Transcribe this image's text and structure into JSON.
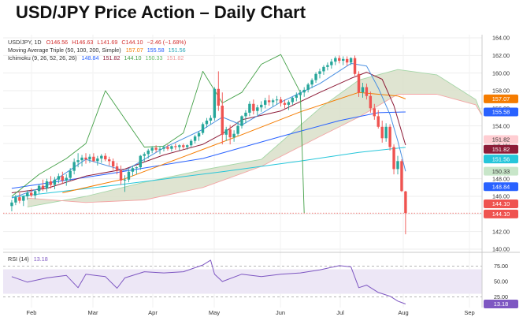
{
  "title": "USD/JPY Price Action – Daily Chart",
  "legend": {
    "line1_label": "USD/JPY, 1D",
    "line1_o": "O146.56",
    "line1_h": "H146.63",
    "line1_l": "L141.69",
    "line1_c": "C144.10",
    "line1_chg": "−2.46 (−1.68%)",
    "line2_label": "Moving Average Triple (50, 100, 200, Simple)",
    "line2_v1": "157.07",
    "line2_v2": "155.58",
    "line2_v3": "151.56",
    "line3_label": "Ichimoku (9, 26, 52, 26, 26)",
    "line3_v1": "148.84",
    "line3_v2": "151.82",
    "line3_v3": "144.10",
    "line3_v4": "150.33",
    "line3_v5": "151.82"
  },
  "colors": {
    "up": "#26a69a",
    "down": "#ef5350",
    "ma50": "#f57c00",
    "ma100": "#2962ff",
    "ma200": "#26c6da",
    "tenkan": "#4a90e2",
    "kijun": "#8e1c38",
    "chikou": "#43a047",
    "cloud": "#d9dfc9",
    "rsi": "#7e57c2",
    "rsi_band": "#ede7f6"
  },
  "chart_data": [
    {
      "type": "candlestick",
      "name": "USD/JPY, 1D",
      "ylim": [
        140,
        164
      ],
      "y_ticks": [
        140,
        142,
        144,
        146,
        148,
        150,
        152,
        154,
        156,
        158,
        160,
        162,
        164
      ],
      "y_tick_labels": [
        "140.00",
        "142.00",
        "144.00",
        "146.00",
        "148.00",
        "150.00",
        "152.00",
        "154.00",
        "156.00",
        "158.00",
        "160.00",
        "162.00",
        "164.00"
      ],
      "x_months": [
        "Feb",
        "Mar",
        "Apr",
        "May",
        "Jun",
        "Jul",
        "Aug",
        "Sep"
      ],
      "ohlc": [
        [
          144.9,
          145.6,
          144.3,
          145.3
        ],
        [
          145.3,
          146.2,
          145.0,
          145.9
        ],
        [
          145.9,
          146.4,
          145.2,
          145.5
        ],
        [
          145.5,
          146.1,
          144.9,
          146.0
        ],
        [
          146.0,
          146.7,
          145.6,
          146.4
        ],
        [
          146.4,
          146.9,
          145.9,
          146.1
        ],
        [
          146.1,
          146.8,
          145.7,
          146.6
        ],
        [
          146.6,
          147.4,
          146.3,
          147.2
        ],
        [
          147.2,
          147.9,
          146.6,
          146.9
        ],
        [
          146.9,
          148.0,
          146.5,
          147.7
        ],
        [
          147.7,
          148.3,
          146.9,
          147.3
        ],
        [
          147.3,
          148.2,
          146.8,
          147.9
        ],
        [
          147.9,
          148.6,
          147.5,
          148.3
        ],
        [
          148.3,
          148.8,
          147.4,
          147.8
        ],
        [
          147.8,
          148.5,
          147.2,
          148.1
        ],
        [
          148.1,
          149.2,
          147.8,
          148.9
        ],
        [
          148.9,
          150.3,
          148.5,
          149.9
        ],
        [
          149.9,
          150.9,
          149.3,
          150.1
        ],
        [
          150.1,
          150.7,
          149.4,
          150.4
        ],
        [
          150.4,
          150.9,
          149.7,
          150.2
        ],
        [
          150.2,
          150.8,
          149.8,
          150.5
        ],
        [
          150.5,
          150.9,
          149.9,
          150.0
        ],
        [
          150.0,
          150.6,
          149.5,
          150.3
        ],
        [
          150.3,
          150.8,
          149.8,
          150.6
        ],
        [
          150.6,
          150.9,
          150.0,
          150.2
        ],
        [
          150.2,
          150.5,
          149.5,
          150.0
        ],
        [
          150.0,
          150.3,
          149.0,
          149.4
        ],
        [
          149.4,
          149.8,
          148.5,
          149.0
        ],
        [
          149.0,
          149.5,
          147.3,
          147.8
        ],
        [
          147.8,
          148.4,
          146.5,
          147.9
        ],
        [
          147.9,
          149.1,
          147.6,
          148.8
        ],
        [
          148.8,
          149.5,
          148.3,
          149.2
        ],
        [
          149.2,
          149.4,
          148.5,
          149.3
        ],
        [
          149.3,
          150.7,
          149.0,
          150.6
        ],
        [
          150.6,
          151.0,
          149.9,
          150.8
        ],
        [
          150.8,
          151.4,
          150.3,
          151.2
        ],
        [
          151.2,
          151.7,
          150.9,
          151.5
        ],
        [
          151.5,
          151.8,
          151.0,
          151.3
        ],
        [
          151.3,
          151.7,
          150.8,
          151.4
        ],
        [
          151.4,
          151.8,
          151.1,
          151.6
        ],
        [
          151.6,
          151.9,
          151.2,
          151.4
        ],
        [
          151.4,
          151.8,
          151.1,
          151.7
        ],
        [
          151.7,
          152.0,
          151.3,
          151.6
        ],
        [
          151.6,
          151.9,
          151.2,
          151.8
        ],
        [
          151.8,
          152.0,
          151.4,
          151.6
        ],
        [
          151.6,
          151.9,
          151.3,
          151.8
        ],
        [
          151.8,
          152.5,
          151.6,
          152.3
        ],
        [
          152.3,
          153.0,
          152.0,
          152.8
        ],
        [
          152.8,
          153.4,
          152.3,
          153.2
        ],
        [
          153.2,
          154.4,
          153.0,
          154.2
        ],
        [
          154.2,
          154.9,
          153.8,
          154.6
        ],
        [
          154.6,
          155.2,
          154.2,
          154.9
        ],
        [
          154.9,
          158.4,
          154.6,
          158.2
        ],
        [
          158.2,
          160.2,
          155.7,
          156.3
        ],
        [
          156.3,
          157.8,
          151.9,
          153.0
        ],
        [
          153.0,
          153.9,
          152.3,
          153.6
        ],
        [
          153.6,
          154.1,
          151.9,
          152.7
        ],
        [
          152.7,
          153.5,
          152.2,
          153.1
        ],
        [
          153.1,
          154.5,
          152.9,
          154.0
        ],
        [
          154.0,
          155.2,
          153.7,
          155.1
        ],
        [
          155.1,
          155.8,
          154.3,
          155.5
        ],
        [
          155.5,
          156.8,
          155.1,
          156.5
        ],
        [
          156.5,
          157.0,
          155.3,
          155.7
        ],
        [
          155.7,
          156.4,
          155.2,
          156.1
        ],
        [
          156.1,
          156.8,
          155.6,
          156.4
        ],
        [
          156.4,
          157.2,
          156.0,
          156.9
        ],
        [
          156.9,
          157.5,
          156.3,
          156.7
        ],
        [
          156.7,
          157.1,
          156.2,
          156.9
        ],
        [
          156.9,
          157.4,
          156.4,
          157.0
        ],
        [
          157.0,
          157.3,
          156.2,
          156.6
        ],
        [
          156.6,
          157.0,
          156.0,
          156.4
        ],
        [
          156.4,
          156.9,
          155.8,
          156.7
        ],
        [
          156.7,
          157.3,
          156.4,
          157.2
        ],
        [
          157.2,
          157.8,
          156.8,
          157.5
        ],
        [
          157.5,
          158.1,
          157.0,
          157.8
        ],
        [
          157.8,
          158.4,
          157.3,
          158.1
        ],
        [
          158.1,
          158.9,
          157.8,
          158.7
        ],
        [
          158.7,
          159.4,
          158.3,
          159.2
        ],
        [
          159.2,
          160.1,
          158.9,
          159.9
        ],
        [
          159.9,
          160.5,
          159.4,
          160.2
        ],
        [
          160.2,
          160.9,
          159.8,
          160.7
        ],
        [
          160.7,
          161.2,
          160.3,
          160.9
        ],
        [
          160.9,
          161.6,
          160.5,
          161.3
        ],
        [
          161.3,
          161.9,
          160.9,
          161.7
        ],
        [
          161.7,
          162.0,
          161.1,
          161.4
        ],
        [
          161.4,
          161.9,
          160.9,
          161.6
        ],
        [
          161.6,
          161.9,
          160.8,
          161.2
        ],
        [
          161.2,
          161.8,
          160.9,
          161.7
        ],
        [
          161.7,
          162.0,
          159.7,
          159.9
        ],
        [
          159.9,
          160.2,
          157.3,
          157.8
        ],
        [
          157.8,
          158.9,
          157.2,
          158.4
        ],
        [
          158.4,
          158.8,
          157.0,
          157.4
        ],
        [
          157.4,
          157.9,
          155.5,
          156.0
        ],
        [
          156.0,
          156.5,
          154.7,
          155.1
        ],
        [
          155.1,
          155.8,
          153.7,
          153.9
        ],
        [
          153.9,
          154.6,
          152.1,
          152.6
        ],
        [
          152.6,
          154.3,
          152.2,
          153.9
        ],
        [
          153.9,
          154.2,
          151.2,
          151.6
        ],
        [
          151.6,
          151.9,
          148.5,
          149.1
        ],
        [
          149.1,
          150.6,
          148.5,
          150.0
        ],
        [
          150.0,
          150.2,
          146.5,
          146.6
        ],
        [
          146.56,
          146.63,
          141.69,
          144.1
        ]
      ],
      "moving_averages": {
        "ma50": {
          "name": "MA 50",
          "value": 157.07,
          "x": [
            14,
            30,
            45,
            60,
            75,
            90,
            100,
            102
          ],
          "y": [
            146.4,
            148.0,
            150.5,
            153.0,
            155.6,
            157.8,
            157.4,
            157.07
          ]
        },
        "ma100": {
          "name": "MA 100",
          "value": 155.58,
          "x": [
            1,
            25,
            50,
            70,
            85,
            95,
            102
          ],
          "y": [
            146.9,
            148.5,
            150.3,
            152.8,
            154.6,
            155.5,
            155.58
          ]
        },
        "ma200": {
          "name": "MA 200",
          "value": 151.56,
          "x": [
            1,
            30,
            55,
            75,
            90,
            102
          ],
          "y": [
            145.9,
            147.4,
            148.8,
            150.0,
            151.0,
            151.56
          ]
        }
      },
      "ichimoku": {
        "tenkan": {
          "value": 148.84,
          "x": [
            1,
            10,
            20,
            30,
            40,
            50,
            55,
            60,
            70,
            80,
            88,
            92,
            95,
            98,
            100,
            102
          ],
          "y": [
            145.8,
            147.2,
            150.2,
            148.9,
            151.5,
            153.6,
            155.0,
            154.1,
            156.7,
            158.8,
            161.1,
            160.8,
            158.3,
            155.3,
            152.3,
            148.84
          ]
        },
        "kijun": {
          "value": 151.82,
          "x": [
            1,
            10,
            20,
            30,
            40,
            50,
            55,
            60,
            70,
            80,
            88,
            92,
            96,
            99,
            102
          ],
          "y": [
            146.4,
            146.9,
            148.3,
            149.1,
            150.7,
            151.9,
            153.1,
            154.7,
            155.7,
            157.8,
            159.4,
            160.1,
            159.3,
            156.3,
            151.82
          ]
        },
        "chikou": {
          "value": 144.1,
          "x": [
            1,
            8,
            15,
            20,
            25,
            30,
            35,
            40,
            45,
            50,
            55,
            60,
            65,
            70,
            75,
            76
          ],
          "y": [
            146.0,
            148.5,
            150.3,
            152.0,
            158.0,
            154.8,
            151.6,
            151.7,
            153.2,
            160.2,
            156.6,
            157.8,
            161.0,
            162.1,
            157.8,
            144.1
          ]
        },
        "span_a": {
          "value": 150.33,
          "x": [
            5,
            20,
            35,
            50,
            65,
            80,
            90,
            100,
            110,
            120,
            126
          ],
          "y": [
            144.8,
            146.0,
            147.6,
            149.0,
            150.2,
            156.0,
            159.2,
            160.4,
            159.8,
            157.0,
            150.33
          ]
        },
        "span_b": {
          "value": 151.82,
          "x": [
            5,
            20,
            35,
            50,
            65,
            80,
            90,
            100,
            110,
            120,
            126
          ],
          "y": [
            145.8,
            145.3,
            145.6,
            147.0,
            149.4,
            152.8,
            155.0,
            157.6,
            157.6,
            156.4,
            151.82
          ]
        }
      }
    },
    {
      "type": "line",
      "name": "RSI (14)",
      "value": 13.18,
      "ylim": [
        10,
        90
      ],
      "y_ticks": [
        25,
        50,
        75
      ],
      "y_tick_labels": [
        "25.00",
        "50.00",
        "75.00"
      ],
      "band": [
        30,
        70
      ],
      "x": [
        1,
        5,
        10,
        15,
        18,
        20,
        25,
        28,
        30,
        35,
        40,
        45,
        50,
        52,
        53,
        55,
        60,
        65,
        70,
        75,
        80,
        85,
        88,
        90,
        92,
        95,
        98,
        100,
        102
      ],
      "y": [
        58,
        49,
        56,
        60,
        40,
        62,
        58,
        39,
        56,
        66,
        64,
        66,
        77,
        85,
        62,
        50,
        62,
        58,
        62,
        64,
        69,
        76,
        74,
        40,
        44,
        32,
        26,
        18,
        13.18
      ]
    }
  ],
  "price_badges": [
    {
      "label": "157.07",
      "color": "#f57c00",
      "text_color": "#ffffff",
      "price": 157.07
    },
    {
      "label": "155.58",
      "color": "#2962ff",
      "text_color": "#ffffff",
      "price": 155.58
    },
    {
      "label": "151.82",
      "color": "#ffcdd2",
      "text_color": "#333333",
      "price": 152.45
    },
    {
      "label": "151.82",
      "color": "#8e1c38",
      "text_color": "#ffffff",
      "price": 151.35
    },
    {
      "label": "151.56",
      "color": "#26c6da",
      "text_color": "#ffffff",
      "price": 150.24
    },
    {
      "label": "150.33",
      "color": "#c8e6c9",
      "text_color": "#333333",
      "price": 148.85
    },
    {
      "label": "148.84",
      "color": "#2962ff",
      "text_color": "#ffffff",
      "price": 147.1
    },
    {
      "label": "144.10",
      "color": "#ef5350",
      "text_color": "#ffffff",
      "price": 145.15
    },
    {
      "label": "144.10",
      "color": "#ef5350",
      "text_color": "#ffffff",
      "price": 144.0
    }
  ],
  "rsi_panel": {
    "label": "RSI (14)",
    "value_label": "13.18",
    "badge_color": "#7e57c2"
  }
}
